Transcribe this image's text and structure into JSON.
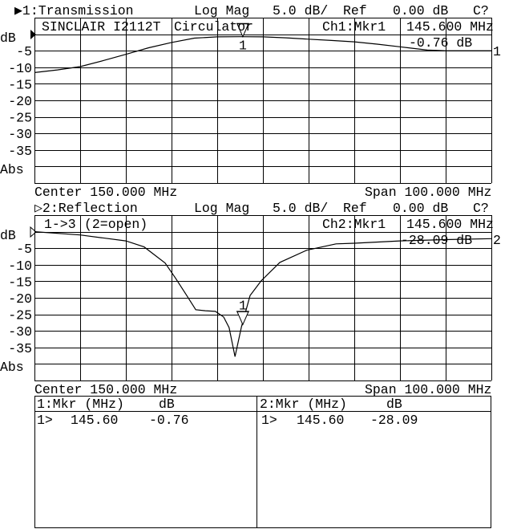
{
  "channel1": {
    "header": {
      "title": "▶1:Transmission",
      "format": "Log Mag",
      "scale": "5.0 dB/",
      "ref_label": "Ref",
      "ref_value": "0.00 dB",
      "cal": "C?"
    },
    "unit": "dB",
    "y_labels": [
      "-5",
      "-10",
      "-15",
      "-20",
      "-25",
      "-30",
      "-35"
    ],
    "abs_label": "Abs",
    "annotation": {
      "left": "SINCLAIR I2112T",
      "middle": "Circulator",
      "marker_label": "Ch1:Mkr1",
      "marker_freq": "145.600 MHz",
      "marker_value": "-0.76 dB"
    },
    "ref_position_label": "1",
    "center": "Center 150.000 MHz",
    "span": "Span 100.000 MHz"
  },
  "channel2": {
    "header": {
      "title": "▷2:Reflection",
      "format": "Log Mag",
      "scale": "5.0 dB/",
      "ref_label": "Ref",
      "ref_value": "0.00 dB",
      "cal": "C?"
    },
    "unit": "dB",
    "y_labels": [
      "-5",
      "-10",
      "-15",
      "-20",
      "-25",
      "-30",
      "-35"
    ],
    "abs_label": "Abs",
    "annotation": {
      "left": "1->3",
      "middle": "(2=open)",
      "marker_label": "Ch2:Mkr1",
      "marker_freq": "145.600 MHz",
      "marker_value": "-28.09 dB"
    },
    "ref_position_label": "2",
    "center": "Center 150.000 MHz",
    "span": "Span 100.000 MHz"
  },
  "marker_tables": [
    {
      "col1": "1:Mkr (MHz)",
      "col2": "dB",
      "rows": [
        {
          "id": "1>",
          "freq": "145.60",
          "value": "-0.76"
        }
      ]
    },
    {
      "col1": "2:Mkr (MHz)",
      "col2": "dB",
      "rows": [
        {
          "id": "1>",
          "freq": "145.60",
          "value": "-28.09"
        }
      ]
    }
  ],
  "chart_data": [
    {
      "type": "line",
      "title": "1:Transmission",
      "xlabel": "",
      "ylabel": "dB",
      "xlim": [
        100,
        200
      ],
      "ylim": [
        -45,
        5
      ],
      "x_divisions": 10,
      "y_per_div": 5,
      "grid": true,
      "series": [
        {
          "x": [
            100,
            105,
            110,
            115,
            120,
            125,
            130,
            135,
            140,
            145,
            150,
            155,
            160,
            165,
            170,
            175,
            180,
            186,
            190,
            195,
            200
          ],
          "y": [
            -11.6,
            -10.8,
            -9.8,
            -8.0,
            -6.1,
            -4.1,
            -2.5,
            -1.2,
            -0.8,
            -0.75,
            -0.8,
            -1.1,
            -1.5,
            -1.9,
            -2.3,
            -3.0,
            -3.8,
            -4.8,
            -5.0,
            -5.0,
            -5.0
          ]
        }
      ],
      "marker": {
        "label": "1",
        "x": 145.6,
        "y": -0.76
      }
    },
    {
      "type": "line",
      "title": "2:Reflection",
      "xlabel": "",
      "ylabel": "dB",
      "xlim": [
        100,
        200
      ],
      "ylim": [
        -45,
        5
      ],
      "x_divisions": 10,
      "y_per_div": 5,
      "grid": true,
      "series": [
        {
          "x": [
            100,
            110,
            120,
            124,
            128.6,
            130.9,
            133.2,
            135.3,
            137.4,
            139.6,
            141.4,
            142.6,
            143.9,
            145.3,
            147.2,
            149.6,
            153.7,
            159.6,
            166,
            170,
            180,
            190,
            200
          ],
          "y": [
            0,
            -1.0,
            -2.8,
            -4.6,
            -9.5,
            -14.1,
            -19.0,
            -23.6,
            -23.9,
            -24.1,
            -25.8,
            -29.0,
            -37.8,
            -28.8,
            -19.3,
            -14.9,
            -9.3,
            -5.6,
            -3.7,
            -3.5,
            -2.8,
            -2.4,
            -2.1
          ]
        }
      ],
      "marker": {
        "label": "1",
        "x": 145.6,
        "y": -28.09
      }
    }
  ]
}
